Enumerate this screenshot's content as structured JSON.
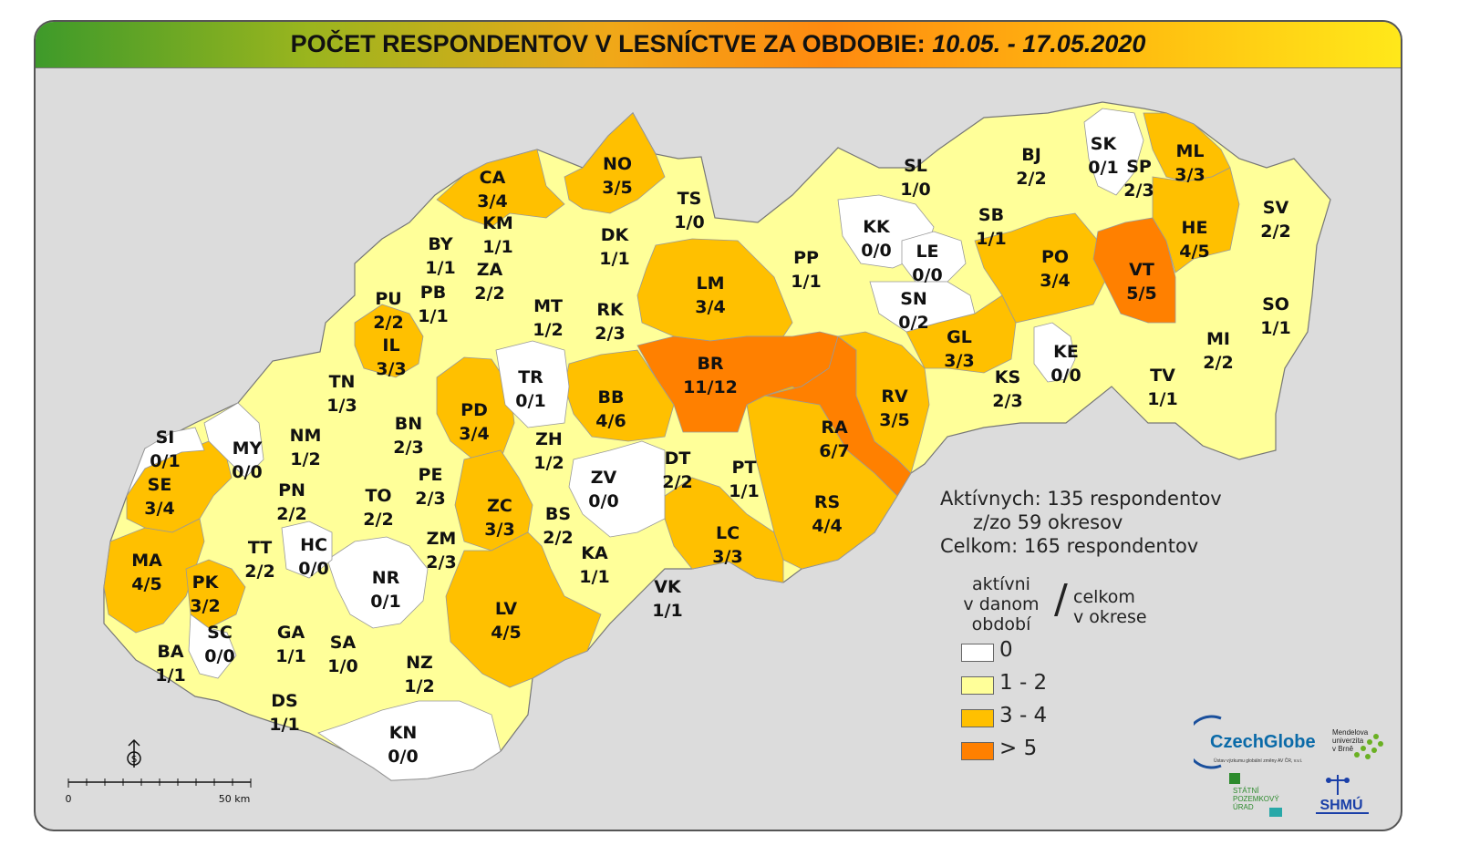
{
  "title": {
    "main": "POČET RESPONDENTOV V LESNÍCTVE ZA OBDOBIE:",
    "dates": "10.05. - 17.05.2020"
  },
  "districts": [
    {
      "code": "CA",
      "value": "3/4",
      "level": 2
    },
    {
      "code": "NO",
      "value": "3/5",
      "level": 2
    },
    {
      "code": "TS",
      "value": "1/0",
      "level": 1
    },
    {
      "code": "KM",
      "value": "1/1",
      "level": 1
    },
    {
      "code": "BY",
      "value": "1/1",
      "level": 1
    },
    {
      "code": "ZA",
      "value": "2/2",
      "level": 1
    },
    {
      "code": "DK",
      "value": "1/1",
      "level": 1
    },
    {
      "code": "PU",
      "value": "2/2",
      "level": 1
    },
    {
      "code": "PB",
      "value": "1/1",
      "level": 1
    },
    {
      "code": "MT",
      "value": "1/2",
      "level": 1
    },
    {
      "code": "RK",
      "value": "2/3",
      "level": 1
    },
    {
      "code": "LM",
      "value": "3/4",
      "level": 2
    },
    {
      "code": "PP",
      "value": "1/1",
      "level": 1
    },
    {
      "code": "IL",
      "value": "3/3",
      "level": 2
    },
    {
      "code": "TN",
      "value": "1/3",
      "level": 1
    },
    {
      "code": "TR",
      "value": "0/1",
      "level": 0
    },
    {
      "code": "PD",
      "value": "3/4",
      "level": 2
    },
    {
      "code": "BB",
      "value": "4/6",
      "level": 2
    },
    {
      "code": "BR",
      "value": "11/12",
      "level": 3
    },
    {
      "code": "SI",
      "value": "0/1",
      "level": 0
    },
    {
      "code": "MY",
      "value": "0/0",
      "level": 0
    },
    {
      "code": "NM",
      "value": "1/2",
      "level": 1
    },
    {
      "code": "BN",
      "value": "2/3",
      "level": 1
    },
    {
      "code": "ZH",
      "value": "1/2",
      "level": 1
    },
    {
      "code": "SE",
      "value": "3/4",
      "level": 2
    },
    {
      "code": "PN",
      "value": "2/2",
      "level": 1
    },
    {
      "code": "TO",
      "value": "2/2",
      "level": 1
    },
    {
      "code": "PE",
      "value": "2/3",
      "level": 1
    },
    {
      "code": "ZV",
      "value": "0/0",
      "level": 0
    },
    {
      "code": "DT",
      "value": "2/2",
      "level": 1
    },
    {
      "code": "PT",
      "value": "1/1",
      "level": 1
    },
    {
      "code": "ZC",
      "value": "3/3",
      "level": 2
    },
    {
      "code": "BS",
      "value": "2/2",
      "level": 1
    },
    {
      "code": "MA",
      "value": "4/5",
      "level": 2
    },
    {
      "code": "TT",
      "value": "2/2",
      "level": 1
    },
    {
      "code": "HC",
      "value": "0/0",
      "level": 0
    },
    {
      "code": "ZM",
      "value": "2/3",
      "level": 1
    },
    {
      "code": "KA",
      "value": "1/1",
      "level": 1
    },
    {
      "code": "LC",
      "value": "3/3",
      "level": 2
    },
    {
      "code": "RS",
      "value": "4/4",
      "level": 2
    },
    {
      "code": "RA",
      "value": "6/7",
      "level": 3
    },
    {
      "code": "RV",
      "value": "3/5",
      "level": 2
    },
    {
      "code": "PK",
      "value": "3/2",
      "level": 2
    },
    {
      "code": "NR",
      "value": "0/1",
      "level": 0
    },
    {
      "code": "LV",
      "value": "4/5",
      "level": 2
    },
    {
      "code": "VK",
      "value": "1/1",
      "level": 1
    },
    {
      "code": "SC",
      "value": "0/0",
      "level": 0
    },
    {
      "code": "GA",
      "value": "1/1",
      "level": 1
    },
    {
      "code": "SA",
      "value": "1/0",
      "level": 1
    },
    {
      "code": "NZ",
      "value": "1/2",
      "level": 1
    },
    {
      "code": "BA",
      "value": "1/1",
      "level": 1
    },
    {
      "code": "DS",
      "value": "1/1",
      "level": 1
    },
    {
      "code": "KN",
      "value": "0/0",
      "level": 0
    },
    {
      "code": "SL",
      "value": "1/0",
      "level": 1
    },
    {
      "code": "BJ",
      "value": "2/2",
      "level": 1
    },
    {
      "code": "SK",
      "value": "0/1",
      "level": 0
    },
    {
      "code": "SP",
      "value": "2/3",
      "level": 1
    },
    {
      "code": "ML",
      "value": "3/3",
      "level": 2
    },
    {
      "code": "SV",
      "value": "2/2",
      "level": 1
    },
    {
      "code": "KK",
      "value": "0/0",
      "level": 0
    },
    {
      "code": "LE",
      "value": "0/0",
      "level": 0
    },
    {
      "code": "SB",
      "value": "1/1",
      "level": 1
    },
    {
      "code": "PO",
      "value": "3/4",
      "level": 2
    },
    {
      "code": "HE",
      "value": "4/5",
      "level": 2
    },
    {
      "code": "VT",
      "value": "5/5",
      "level": 3
    },
    {
      "code": "SN",
      "value": "0/2",
      "level": 0
    },
    {
      "code": "SO",
      "value": "1/1",
      "level": 1
    },
    {
      "code": "GL",
      "value": "3/3",
      "level": 2
    },
    {
      "code": "KE",
      "value": "0/0",
      "level": 0
    },
    {
      "code": "MI",
      "value": "2/2",
      "level": 1
    },
    {
      "code": "KS",
      "value": "2/3",
      "level": 1
    },
    {
      "code": "TV",
      "value": "1/1",
      "level": 1
    }
  ],
  "stats": {
    "line1": "Aktívnych: 135 respondentov",
    "line2": "z/zo 59 okresov",
    "line3": "Celkom: 165 respondentov"
  },
  "legend": {
    "active_label": [
      "aktívni",
      "v danom",
      "období"
    ],
    "slash": "/",
    "total_label": [
      "celkom",
      "v okrese"
    ],
    "classes": [
      {
        "label": "0",
        "color": "#ffffff"
      },
      {
        "label": "1 - 2",
        "color": "#ffff99"
      },
      {
        "label": "3 - 4",
        "color": "#ffc000"
      },
      {
        "label": "> 5",
        "color": "#ff8000"
      }
    ]
  },
  "scalebar": {
    "left_label": "0",
    "right_label": "50 km"
  },
  "logos": {
    "czechglobe": "CzechGlobe",
    "czechglobe_sub": "Ústav výzkumu globální změny AV ČR, v.v.i.",
    "mendel": [
      "Mendelova",
      "univerzita",
      "v Brně"
    ],
    "spu": [
      "STÁTNÍ",
      "POZEMKOVÝ",
      "ÚRAD"
    ],
    "shmu": "SHMÚ"
  },
  "colors": {
    "level0": "#ffffff",
    "level1": "#ffff99",
    "level2": "#ffc000",
    "level3": "#ff8000",
    "background": "#dcdcdc",
    "border": "#999999"
  }
}
